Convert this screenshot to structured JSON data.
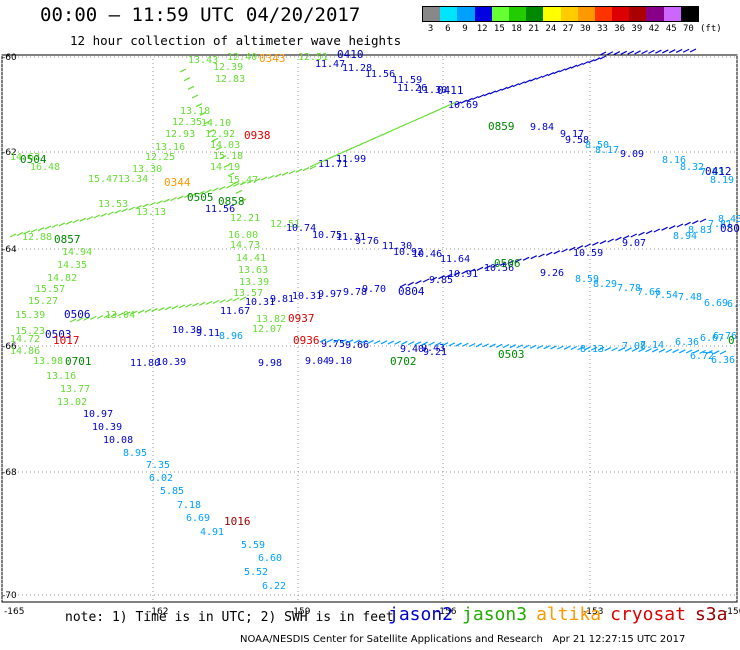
{
  "title": "00:00 – 11:59 UTC 04/20/2017",
  "subtitle": "12 hour collection of altimeter wave heights",
  "scale": {
    "unit": "(ft)",
    "bins": [
      {
        "label": "3",
        "color": "#888888"
      },
      {
        "label": "6",
        "color": "#00e5ff"
      },
      {
        "label": "9",
        "color": "#00a0ff"
      },
      {
        "label": "12",
        "color": "#0000e0"
      },
      {
        "label": "15",
        "color": "#66ff33"
      },
      {
        "label": "18",
        "color": "#22cc00"
      },
      {
        "label": "21",
        "color": "#008800"
      },
      {
        "label": "24",
        "color": "#ffff00"
      },
      {
        "label": "27",
        "color": "#ffcc00"
      },
      {
        "label": "30",
        "color": "#ff9900"
      },
      {
        "label": "33",
        "color": "#ff3300"
      },
      {
        "label": "36",
        "color": "#dd0000"
      },
      {
        "label": "39",
        "color": "#aa0000"
      },
      {
        "label": "42",
        "color": "#880088"
      },
      {
        "label": "45",
        "color": "#cc66ff"
      },
      {
        "label": "70",
        "color": "#000000"
      }
    ]
  },
  "axes": {
    "lat_labels": [
      "-60",
      "-62",
      "-64",
      "-66",
      "-68",
      "-70"
    ],
    "lon_labels": [
      "-165",
      "-162",
      "-159",
      "-156",
      "-153",
      "-150"
    ]
  },
  "note": "note: 1) Time is in UTC; 2) SWH is in feet",
  "legend": [
    {
      "name": "jason2",
      "color": "#0000cc"
    },
    {
      "name": "jason3",
      "color": "#22aa00"
    },
    {
      "name": "altika",
      "color": "#ff9900"
    },
    {
      "name": "cryosat",
      "color": "#dd0000"
    },
    {
      "name": "s3a",
      "color": "#990000"
    }
  ],
  "credit": "NOAA/NESDIS Center for Satellite Applications and Research   Apr 21 12:27:15 UTC 2017",
  "time_labels": [
    {
      "text": "0343",
      "color": "#ff9900"
    },
    {
      "text": "0410",
      "color": "#0000cc"
    },
    {
      "text": "0938",
      "color": "#dd0000"
    },
    {
      "text": "0411",
      "color": "#0000cc"
    },
    {
      "text": "0504",
      "color": "#008800"
    },
    {
      "text": "0344",
      "color": "#ff9900"
    },
    {
      "text": "0505",
      "color": "#008800"
    },
    {
      "text": "0858",
      "color": "#008800"
    },
    {
      "text": "0412",
      "color": "#0000cc"
    },
    {
      "text": "0857",
      "color": "#008800"
    },
    {
      "text": "0506",
      "color": "#008800"
    },
    {
      "text": "0804",
      "color": "#0000cc"
    },
    {
      "text": "0506",
      "color": "#0000cc"
    },
    {
      "text": "0937",
      "color": "#dd0000"
    },
    {
      "text": "0503",
      "color": "#0000cc"
    },
    {
      "text": "1017",
      "color": "#dd0000"
    },
    {
      "text": "0936",
      "color": "#dd0000"
    },
    {
      "text": "0701",
      "color": "#008800"
    },
    {
      "text": "0702",
      "color": "#008800"
    },
    {
      "text": "0503",
      "color": "#008800"
    },
    {
      "text": "1016",
      "color": "#990000"
    },
    {
      "text": "0859",
      "color": "#008800"
    },
    {
      "text": "080",
      "color": "#0000cc"
    },
    {
      "text": "0",
      "color": "#008800"
    }
  ],
  "observations": [
    {
      "text": "12.40",
      "color": "#66dd33"
    },
    {
      "text": "12.51",
      "color": "#66dd33"
    },
    {
      "text": "11.47",
      "color": "#0000cc"
    },
    {
      "text": "11.28",
      "color": "#0000cc"
    },
    {
      "text": "11.56",
      "color": "#0000cc"
    },
    {
      "text": "11.59",
      "color": "#0000cc"
    },
    {
      "text": "11.26",
      "color": "#0000cc"
    },
    {
      "text": "11.30",
      "color": "#0000cc"
    },
    {
      "text": "13.43",
      "color": "#66dd33"
    },
    {
      "text": "12.39",
      "color": "#66dd33"
    },
    {
      "text": "12.83",
      "color": "#66dd33"
    },
    {
      "text": "13.18",
      "color": "#66dd33"
    },
    {
      "text": "12.35",
      "color": "#66dd33"
    },
    {
      "text": "14.10",
      "color": "#66dd33"
    },
    {
      "text": "12.93",
      "color": "#66dd33"
    },
    {
      "text": "12.92",
      "color": "#66dd33"
    },
    {
      "text": "13.16",
      "color": "#66dd33"
    },
    {
      "text": "14.03",
      "color": "#66dd33"
    },
    {
      "text": "14.63",
      "color": "#66dd33"
    },
    {
      "text": "12.25",
      "color": "#66dd33"
    },
    {
      "text": "15.18",
      "color": "#66dd33"
    },
    {
      "text": "16.48",
      "color": "#66dd33"
    },
    {
      "text": "13.30",
      "color": "#66dd33"
    },
    {
      "text": "14.19",
      "color": "#66dd33"
    },
    {
      "text": "15.47",
      "color": "#66dd33"
    },
    {
      "text": "13.34",
      "color": "#66dd33"
    },
    {
      "text": "15.47",
      "color": "#66dd33"
    },
    {
      "text": "13.53",
      "color": "#66dd33"
    },
    {
      "text": "11.56",
      "color": "#0000cc"
    },
    {
      "text": "12.21",
      "color": "#66dd33"
    },
    {
      "text": "12.51",
      "color": "#66dd33"
    },
    {
      "text": "10.74",
      "color": "#0000cc"
    },
    {
      "text": "10.75",
      "color": "#0000cc"
    },
    {
      "text": "11.31",
      "color": "#0000cc"
    },
    {
      "text": "9.76",
      "color": "#0000cc"
    },
    {
      "text": "11.30",
      "color": "#0000cc"
    },
    {
      "text": "10.92",
      "color": "#0000cc"
    },
    {
      "text": "10.46",
      "color": "#0000cc"
    },
    {
      "text": "11.64",
      "color": "#0000cc"
    },
    {
      "text": "16.00",
      "color": "#66dd33"
    },
    {
      "text": "14.73",
      "color": "#66dd33"
    },
    {
      "text": "14.94",
      "color": "#66dd33"
    },
    {
      "text": "14.41",
      "color": "#66dd33"
    },
    {
      "text": "14.35",
      "color": "#66dd33"
    },
    {
      "text": "13.63",
      "color": "#66dd33"
    },
    {
      "text": "14.82",
      "color": "#66dd33"
    },
    {
      "text": "13.39",
      "color": "#66dd33"
    },
    {
      "text": "15.57",
      "color": "#66dd33"
    },
    {
      "text": "13.57",
      "color": "#66dd33"
    },
    {
      "text": "15.27",
      "color": "#66dd33"
    },
    {
      "text": "11.67",
      "color": "#0000cc"
    },
    {
      "text": "10.31",
      "color": "#0000cc"
    },
    {
      "text": "9.81",
      "color": "#0000cc"
    },
    {
      "text": "10.31",
      "color": "#0000cc"
    },
    {
      "text": "9.97",
      "color": "#0000cc"
    },
    {
      "text": "9.78",
      "color": "#0000cc"
    },
    {
      "text": "9.70",
      "color": "#0000cc"
    },
    {
      "text": "13.82",
      "color": "#66dd33"
    },
    {
      "text": "12.07",
      "color": "#66dd33"
    },
    {
      "text": "10.39",
      "color": "#0000cc"
    },
    {
      "text": "9.11",
      "color": "#0000cc"
    },
    {
      "text": "8.96",
      "color": "#00a0ff"
    },
    {
      "text": "14.72",
      "color": "#66dd33"
    },
    {
      "text": "14.86",
      "color": "#66dd33"
    },
    {
      "text": "13.98",
      "color": "#66dd33"
    },
    {
      "text": "11.80",
      "color": "#0000cc"
    },
    {
      "text": "10.39",
      "color": "#0000cc"
    },
    {
      "text": "9.98",
      "color": "#0000cc"
    },
    {
      "text": "9.04",
      "color": "#0000cc"
    },
    {
      "text": "9.10",
      "color": "#0000cc"
    },
    {
      "text": "13.16",
      "color": "#66dd33"
    },
    {
      "text": "13.77",
      "color": "#66dd33"
    },
    {
      "text": "13.02",
      "color": "#66dd33"
    },
    {
      "text": "10.97",
      "color": "#0000cc"
    },
    {
      "text": "10.39",
      "color": "#0000cc"
    },
    {
      "text": "10.08",
      "color": "#0000cc"
    },
    {
      "text": "8.95",
      "color": "#00a0ff"
    },
    {
      "text": "7.35",
      "color": "#00a0ff"
    },
    {
      "text": "6.02",
      "color": "#00a0ff"
    },
    {
      "text": "5.85",
      "color": "#00a0ff"
    },
    {
      "text": "7.18",
      "color": "#00a0ff"
    },
    {
      "text": "6.69",
      "color": "#00a0ff"
    },
    {
      "text": "4.91",
      "color": "#00a0ff"
    },
    {
      "text": "5.59",
      "color": "#00a0ff"
    },
    {
      "text": "6.60",
      "color": "#00a0ff"
    },
    {
      "text": "5.52",
      "color": "#00a0ff"
    },
    {
      "text": "6.22",
      "color": "#00a0ff"
    },
    {
      "text": "10.69",
      "color": "#0000cc"
    },
    {
      "text": "9.84",
      "color": "#0000cc"
    },
    {
      "text": "9.17",
      "color": "#0000cc"
    },
    {
      "text": "9.58",
      "color": "#0000cc"
    },
    {
      "text": "8.50",
      "color": "#00a0ff"
    },
    {
      "text": "8.17",
      "color": "#00a0ff"
    },
    {
      "text": "9.09",
      "color": "#0000cc"
    },
    {
      "text": "8.16",
      "color": "#00a0ff"
    },
    {
      "text": "8.32",
      "color": "#00a0ff"
    },
    {
      "text": "7.83",
      "color": "#00a0ff"
    },
    {
      "text": "8.19",
      "color": "#00a0ff"
    },
    {
      "text": "8.94",
      "color": "#00a0ff"
    },
    {
      "text": "8.83",
      "color": "#00a0ff"
    },
    {
      "text": "7.81",
      "color": "#00a0ff"
    },
    {
      "text": "8.43",
      "color": "#00a0ff"
    },
    {
      "text": "9.07",
      "color": "#0000cc"
    },
    {
      "text": "8.59",
      "color": "#00a0ff"
    },
    {
      "text": "8.29",
      "color": "#00a0ff"
    },
    {
      "text": "7.78",
      "color": "#00a0ff"
    },
    {
      "text": "7.66",
      "color": "#00a0ff"
    },
    {
      "text": "7.54",
      "color": "#00a0ff"
    },
    {
      "text": "7.48",
      "color": "#00a0ff"
    },
    {
      "text": "6.69",
      "color": "#00a0ff"
    },
    {
      "text": "6.89",
      "color": "#00a0ff"
    },
    {
      "text": "6.36",
      "color": "#00a0ff"
    },
    {
      "text": "6.67",
      "color": "#00a0ff"
    },
    {
      "text": "6.76",
      "color": "#00a0ff"
    },
    {
      "text": "6.72",
      "color": "#00a0ff"
    },
    {
      "text": "6.36",
      "color": "#00a0ff"
    },
    {
      "text": "9.26",
      "color": "#0000cc"
    },
    {
      "text": "10.59",
      "color": "#0000cc"
    },
    {
      "text": "11.99",
      "color": "#0000cc"
    },
    {
      "text": "11.71",
      "color": "#0000cc"
    },
    {
      "text": "13.13",
      "color": "#66dd33"
    },
    {
      "text": "12.88",
      "color": "#66dd33"
    },
    {
      "text": "15.39",
      "color": "#66dd33"
    },
    {
      "text": "15.23",
      "color": "#66dd33"
    },
    {
      "text": "13.04",
      "color": "#66dd33"
    },
    {
      "text": "9.75",
      "color": "#0000cc"
    },
    {
      "text": "9.43",
      "color": "#0000cc"
    },
    {
      "text": "9.40",
      "color": "#0000cc"
    },
    {
      "text": "9.21",
      "color": "#0000cc"
    },
    {
      "text": "9.66",
      "color": "#0000cc"
    },
    {
      "text": "10.91",
      "color": "#0000cc"
    },
    {
      "text": "9.85",
      "color": "#0000cc"
    },
    {
      "text": "10.56",
      "color": "#0000cc"
    },
    {
      "text": "8.13",
      "color": "#00a0ff"
    },
    {
      "text": "7.08",
      "color": "#00a0ff"
    },
    {
      "text": "7.14",
      "color": "#00a0ff"
    }
  ]
}
